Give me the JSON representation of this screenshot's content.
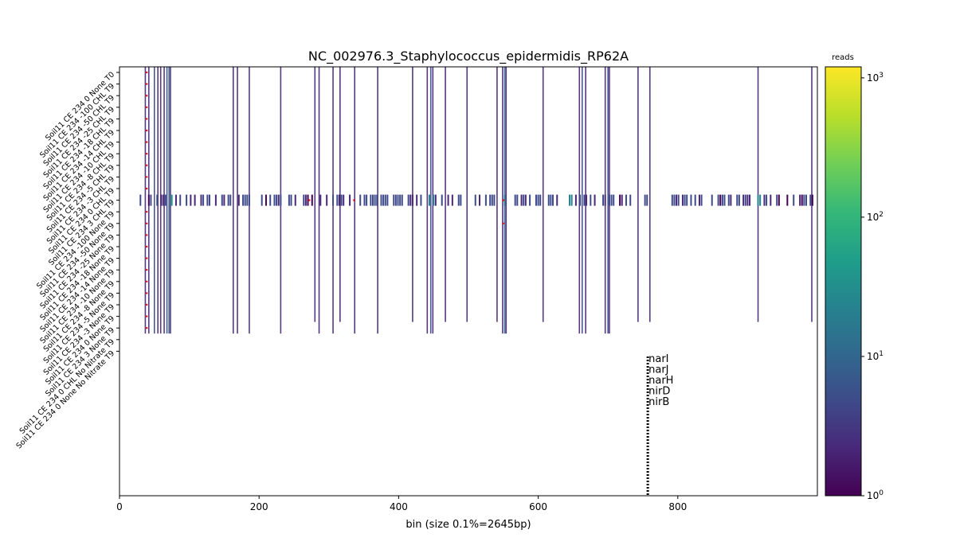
{
  "chart_data": {
    "type": "heatmap",
    "title": "NC_002976.3_Staphylococcus_epidermidis_RP62A",
    "xlabel": "bin (size 0.1%=2645bp)",
    "xlim": [
      0,
      1000
    ],
    "x_ticks": [
      "0",
      "200",
      "400",
      "600",
      "800"
    ],
    "x_tick_values": [
      0,
      200,
      400,
      600,
      800
    ],
    "rows": [
      "Soil11 CE 234 0 None T0",
      "Soil11 CE 234 -100 CHL T9",
      "Soil11 CE 234 -50 CHL T9",
      "Soil11 CE 234 -25 CHL T9",
      "Soil11 CE 234 -18 CHL T9",
      "Soil11 CE 234 -14 CHL T9",
      "Soil11 CE 234 -10 CHL T9",
      "Soil11 CE 234 -8 CHL T9",
      "Soil11 CE 234 -5 CHL T9",
      "Soil11 CE 234 -3 CHL T9",
      "Soil11 CE 234 0 CHL T9",
      "Soil11 CE 234 3 CHL T9",
      "Soil11 CE 234 -100 None T9",
      "Soil11 CE 234 -50 None T9",
      "Soil11 CE 234 -25 None T9",
      "Soil11 CE 234 -18 None T9",
      "Soil11 CE 234 -14 None T9",
      "Soil11 CE 234 -10 None T9",
      "Soil11 CE 234 -8 None T9",
      "Soil11 CE 234 -5 None T9",
      "Soil11 CE 234 -3 None T9",
      "Soil11 CE 234 0 None T9",
      "Soil11 CE 234 3 None T9",
      "Soil11 CE 234 0 CHL No Nitrate T9",
      "Soil11 CE 234 0 None No Nitrate T9"
    ],
    "colorbar": {
      "label": "reads",
      "scale": "log",
      "range": [
        1,
        1200
      ],
      "ticks": [
        {
          "value": 1,
          "base": "10",
          "exp": "0"
        },
        {
          "value": 10,
          "base": "10",
          "exp": "1"
        },
        {
          "value": 100,
          "base": "10",
          "exp": "2"
        },
        {
          "value": 1000,
          "base": "10",
          "exp": "3"
        }
      ],
      "colormap": "viridis",
      "colors": [
        "#440154",
        "#482878",
        "#3e4a89",
        "#31688e",
        "#26828e",
        "#1f9e89",
        "#35b779",
        "#6ece58",
        "#b5de2b",
        "#fde725"
      ]
    },
    "gene_annotations": [
      {
        "label": "narI",
        "bin": 757
      },
      {
        "label": "narJ",
        "bin": 757
      },
      {
        "label": "narH",
        "bin": 757
      },
      {
        "label": "nirD",
        "bin": 757
      },
      {
        "label": "nirB",
        "bin": 757
      }
    ],
    "marker_color": "#ff0000",
    "markers": [
      {
        "bin": 39,
        "rows": [
          0,
          1,
          2,
          3,
          4,
          5,
          6,
          7,
          8,
          9,
          10,
          12,
          13,
          14,
          15,
          16,
          17,
          18,
          19,
          20,
          21,
          22
        ]
      },
      {
        "bin": 272,
        "rows": [
          11
        ]
      },
      {
        "bin": 336,
        "rows": [
          11
        ]
      },
      {
        "bin": 550,
        "rows": [
          11,
          13
        ]
      }
    ],
    "columns": [
      {
        "bin": 37,
        "reads": 3,
        "rows": "all"
      },
      {
        "bin": 42,
        "reads": 2,
        "rows": "all"
      },
      {
        "bin": 50,
        "reads": 4,
        "rows": "all"
      },
      {
        "bin": 55,
        "reads": 2,
        "rows": "all"
      },
      {
        "bin": 59,
        "reads": 3,
        "rows": "all"
      },
      {
        "bin": 64,
        "reads": 2,
        "rows": "all"
      },
      {
        "bin": 68,
        "reads": 5,
        "rows": "all"
      },
      {
        "bin": 71,
        "reads": 8,
        "rows": "all"
      },
      {
        "bin": 73,
        "reads": 3,
        "rows": "all"
      },
      {
        "bin": 163,
        "reads": 2,
        "rows": "all"
      },
      {
        "bin": 169,
        "reads": 3,
        "rows": "all"
      },
      {
        "bin": 186,
        "reads": 2,
        "rows": "all"
      },
      {
        "bin": 231,
        "reads": 2,
        "rows": "all"
      },
      {
        "bin": 286,
        "reads": 2,
        "rows": "all"
      },
      {
        "bin": 306,
        "reads": 3,
        "rows": "all"
      },
      {
        "bin": 337,
        "reads": 2,
        "rows": "all"
      },
      {
        "bin": 370,
        "reads": 2,
        "rows": "all"
      },
      {
        "bin": 441,
        "reads": 3,
        "rows": "all"
      },
      {
        "bin": 446,
        "reads": 6,
        "rows": "all"
      },
      {
        "bin": 449,
        "reads": 3,
        "rows": "all"
      },
      {
        "bin": 549,
        "reads": 2,
        "rows": "all"
      },
      {
        "bin": 552,
        "reads": 12,
        "rows": "all"
      },
      {
        "bin": 554,
        "reads": 3,
        "rows": "all"
      },
      {
        "bin": 659,
        "reads": 3,
        "rows": "all"
      },
      {
        "bin": 663,
        "reads": 6,
        "rows": "all"
      },
      {
        "bin": 668,
        "reads": 2,
        "rows": "all"
      },
      {
        "bin": 696,
        "reads": 2,
        "rows": "all"
      },
      {
        "bin": 700,
        "reads": 4,
        "rows": "all"
      },
      {
        "bin": 702,
        "reads": 2,
        "rows": "all"
      },
      {
        "bin": 280,
        "reads": 2,
        "rows": "0-21"
      },
      {
        "bin": 316,
        "reads": 2,
        "rows": "0-21"
      },
      {
        "bin": 420,
        "reads": 2,
        "rows": "0-21"
      },
      {
        "bin": 467,
        "reads": 2,
        "rows": "0-21"
      },
      {
        "bin": 498,
        "reads": 2,
        "rows": "0-21"
      },
      {
        "bin": 541,
        "reads": 2,
        "rows": "0-21"
      },
      {
        "bin": 607,
        "reads": 2,
        "rows": "0-21"
      },
      {
        "bin": 743,
        "reads": 2,
        "rows": "0-21"
      },
      {
        "bin": 760,
        "reads": 2,
        "rows": "0-21"
      },
      {
        "bin": 915,
        "reads": 2,
        "rows": "0-21"
      },
      {
        "bin": 992,
        "reads": 2,
        "rows": "0-21"
      }
    ],
    "hot_row": {
      "row": 11,
      "reads_range": [
        1,
        60
      ],
      "peak_bins": [
        {
          "bin": 72,
          "reads": 60
        },
        {
          "bin": 555,
          "reads": 25
        },
        {
          "bin": 447,
          "reads": 30
        },
        {
          "bin": 645,
          "reads": 40
        },
        {
          "bin": 915,
          "reads": 30
        }
      ]
    }
  }
}
